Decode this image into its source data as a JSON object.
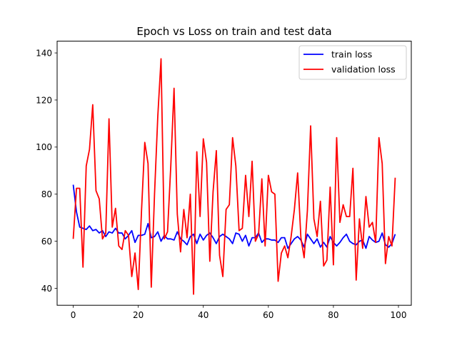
{
  "chart_data": {
    "type": "line",
    "title": "Epoch vs Loss on train and test data",
    "xlabel": "",
    "ylabel": "",
    "xlim": [
      -4.95,
      103.95
    ],
    "ylim": [
      32.8,
      145.0
    ],
    "xticks": [
      0,
      20,
      40,
      60,
      80,
      100
    ],
    "yticks": [
      40,
      60,
      80,
      100,
      120,
      140
    ],
    "grid": false,
    "legend_position": "top-right",
    "series": [
      {
        "name": "train loss",
        "color": "#0000ff",
        "x": [
          0,
          1,
          2,
          3,
          4,
          5,
          6,
          7,
          8,
          9,
          10,
          11,
          12,
          13,
          14,
          15,
          16,
          17,
          18,
          19,
          20,
          21,
          22,
          23,
          24,
          25,
          26,
          27,
          28,
          29,
          30,
          31,
          32,
          33,
          34,
          35,
          36,
          37,
          38,
          39,
          40,
          41,
          42,
          43,
          44,
          45,
          46,
          47,
          48,
          49,
          50,
          51,
          52,
          53,
          54,
          55,
          56,
          57,
          58,
          59,
          60,
          61,
          62,
          63,
          64,
          65,
          66,
          67,
          68,
          69,
          70,
          71,
          72,
          73,
          74,
          75,
          76,
          77,
          78,
          79,
          80,
          81,
          82,
          83,
          84,
          85,
          86,
          87,
          88,
          89,
          90,
          91,
          92,
          93,
          94,
          95,
          96,
          97,
          98,
          99
        ],
        "y": [
          84,
          72.5,
          66,
          65.5,
          65,
          66.5,
          64.5,
          65,
          63.5,
          64.5,
          62,
          64,
          63.5,
          65.5,
          63.5,
          63.5,
          61,
          62.5,
          64.5,
          59.5,
          62.5,
          62.5,
          63,
          67.5,
          61.5,
          62,
          64,
          60,
          62.5,
          61,
          61,
          60.5,
          64,
          61,
          60,
          58.5,
          62,
          63,
          59,
          63,
          60.5,
          62.5,
          63.5,
          61.5,
          59,
          62,
          63,
          62,
          61,
          59,
          63.5,
          63,
          60,
          62.5,
          58,
          61.5,
          61.5,
          63.5,
          59.5,
          61,
          61,
          60.5,
          60.5,
          59.5,
          61.5,
          61.5,
          57,
          59,
          61,
          62,
          60.5,
          57.5,
          63,
          61,
          59,
          61,
          57.5,
          59.5,
          57.5,
          62,
          59.5,
          58,
          59.5,
          61.5,
          63,
          60,
          59,
          58.5,
          60,
          60.5,
          57,
          62,
          60.5,
          59.5,
          60,
          63.5,
          58.5,
          57.5,
          59,
          63
        ]
      },
      {
        "name": "validation loss",
        "color": "#ff0000",
        "x": [
          0,
          1,
          2,
          3,
          4,
          5,
          6,
          7,
          8,
          9,
          10,
          11,
          12,
          13,
          14,
          15,
          16,
          17,
          18,
          19,
          20,
          21,
          22,
          23,
          24,
          25,
          26,
          27,
          28,
          29,
          30,
          31,
          32,
          33,
          34,
          35,
          36,
          37,
          38,
          39,
          40,
          41,
          42,
          43,
          44,
          45,
          46,
          47,
          48,
          49,
          50,
          51,
          52,
          53,
          54,
          55,
          56,
          57,
          58,
          59,
          60,
          61,
          62,
          63,
          64,
          65,
          66,
          67,
          68,
          69,
          70,
          71,
          72,
          73,
          74,
          75,
          76,
          77,
          78,
          79,
          80,
          81,
          82,
          83,
          84,
          85,
          86,
          87,
          88,
          89,
          90,
          91,
          92,
          93,
          94,
          95,
          96,
          97,
          98,
          99
        ],
        "y": [
          61,
          82.5,
          82.5,
          49,
          92,
          99,
          118,
          81.5,
          78,
          61,
          63.5,
          112,
          66,
          74,
          58,
          56.5,
          64.5,
          62.5,
          45,
          55,
          39.5,
          73,
          102,
          93,
          40.5,
          80,
          113,
          137.5,
          61,
          64,
          92,
          125,
          71.5,
          55.5,
          73.5,
          61.5,
          80,
          37.5,
          98,
          70.5,
          103.5,
          93.5,
          51.5,
          81,
          98.5,
          54,
          45,
          73.5,
          75.5,
          104,
          92,
          64.5,
          65.5,
          88,
          70.5,
          94,
          60,
          63,
          86.5,
          58,
          88,
          81,
          80,
          43,
          55,
          58,
          53,
          62,
          73.5,
          89,
          61.5,
          53,
          73,
          109,
          69.5,
          62,
          77,
          49.5,
          52,
          83,
          50,
          104,
          68,
          75.5,
          70.5,
          70.5,
          91,
          43.5,
          69.5,
          57,
          79,
          66,
          68,
          59.5,
          104,
          93,
          50.5,
          62,
          58,
          87
        ]
      }
    ]
  }
}
